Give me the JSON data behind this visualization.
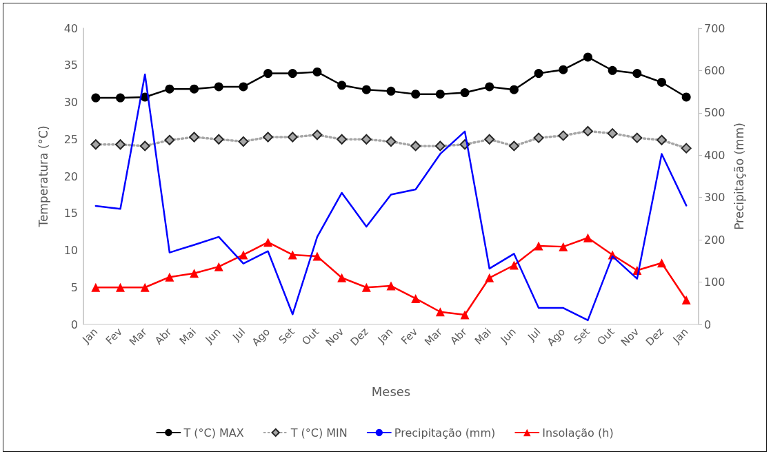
{
  "chart_data": {
    "type": "line",
    "xlabel": "Meses",
    "ylabel": "Temperatura (°C)",
    "y2label": "Precipitação (mm)",
    "categories": [
      "Jan",
      "Fev",
      "Mar",
      "Abr",
      "Mai",
      "Jun",
      "Jul",
      "Ago",
      "Set",
      "Out",
      "Nov",
      "Dez",
      "Jan",
      "Fev",
      "Mar",
      "Abr",
      "Mai",
      "Jun",
      "Jul",
      "Ago",
      "Set",
      "Out",
      "Nov",
      "Dez",
      "Jan"
    ],
    "series": [
      {
        "name": "T (°C) MAX",
        "color": "#000000",
        "marker": "circle",
        "line_style": "solid",
        "values": [
          30.6,
          30.6,
          30.7,
          31.8,
          31.8,
          32.1,
          32.1,
          33.9,
          33.9,
          34.1,
          32.3,
          31.7,
          31.5,
          31.1,
          31.1,
          31.3,
          32.1,
          31.7,
          33.9,
          34.4,
          36.1,
          34.3,
          33.9,
          32.7,
          30.7
        ]
      },
      {
        "name": "T (°C) MIN",
        "color": "#a6a6a6",
        "marker": "diamond",
        "line_style": "dotted",
        "values": [
          24.3,
          24.3,
          24.1,
          24.9,
          25.3,
          25.0,
          24.7,
          25.3,
          25.3,
          25.6,
          25.0,
          25.0,
          24.7,
          24.1,
          24.1,
          24.3,
          25.0,
          24.1,
          25.2,
          25.5,
          26.1,
          25.8,
          25.2,
          24.9,
          23.8
        ]
      },
      {
        "name": "Precipitação (mm)",
        "color": "#0000ff",
        "marker": "none",
        "line_style": "solid",
        "axis": "y2",
        "values": [
          280,
          273,
          591,
          170,
          188,
          207,
          144,
          173,
          24,
          207,
          311,
          231,
          307,
          319,
          403,
          456,
          132,
          167,
          39,
          39,
          10,
          161,
          108,
          403,
          281
        ]
      },
      {
        "name": "Insolação (h)",
        "color": "#ff0000",
        "marker": "triangle",
        "line_style": "solid",
        "values": [
          5.0,
          5.0,
          5.0,
          6.4,
          6.9,
          7.8,
          9.4,
          11.1,
          9.4,
          9.2,
          6.3,
          5.0,
          5.2,
          3.5,
          1.7,
          1.3,
          6.3,
          8.0,
          10.6,
          10.5,
          11.7,
          9.4,
          7.3,
          8.3,
          3.3
        ]
      }
    ],
    "ylim": [
      0,
      40
    ],
    "yticks": [
      0,
      5,
      10,
      15,
      20,
      25,
      30,
      35,
      40
    ],
    "y2lim": [
      0,
      700
    ],
    "y2ticks": [
      0,
      100,
      200,
      300,
      400,
      500,
      600,
      700
    ],
    "grid": false,
    "legend": "bottom"
  }
}
